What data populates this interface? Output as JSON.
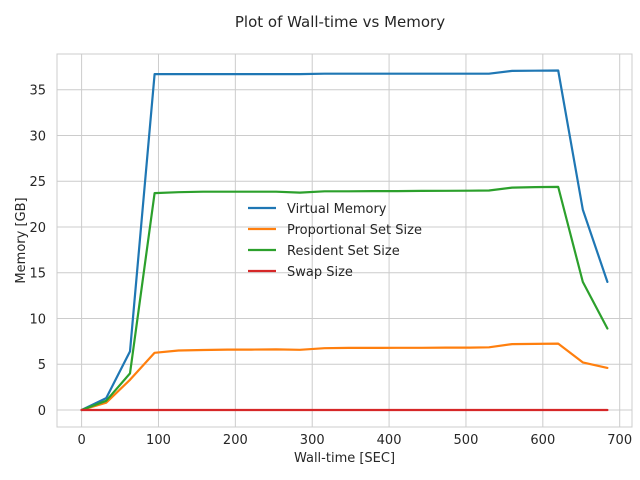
{
  "chart_data": {
    "type": "line",
    "title": "Plot of Wall-time vs Memory",
    "xlabel": "Wall-time [SEC]",
    "ylabel": "Memory [GB]",
    "xlim": [
      -32,
      716
    ],
    "ylim": [
      -1.86,
      38.9
    ],
    "xticks": [
      0,
      100,
      200,
      300,
      400,
      500,
      600,
      700
    ],
    "yticks": [
      0,
      5,
      10,
      15,
      20,
      25,
      30,
      35
    ],
    "grid": true,
    "legend_position": "center",
    "series": [
      {
        "name": "Virtual Memory",
        "color": "#1f77b4",
        "x": [
          0,
          32,
          63,
          95,
          126,
          158,
          190,
          221,
          253,
          284,
          316,
          347,
          379,
          411,
          442,
          474,
          505,
          530,
          560,
          590,
          620,
          652,
          684
        ],
        "y": [
          0,
          1.3,
          6.4,
          36.7,
          36.7,
          36.7,
          36.7,
          36.7,
          36.7,
          36.7,
          36.75,
          36.75,
          36.75,
          36.75,
          36.75,
          36.75,
          36.75,
          36.75,
          37.05,
          37.08,
          37.1,
          21.9,
          14.0
        ]
      },
      {
        "name": "Proportional Set Size",
        "color": "#ff7f0e",
        "x": [
          0,
          32,
          63,
          95,
          126,
          158,
          190,
          221,
          253,
          284,
          316,
          347,
          379,
          411,
          442,
          474,
          505,
          530,
          560,
          590,
          620,
          652,
          684
        ],
        "y": [
          0,
          0.8,
          3.3,
          6.25,
          6.5,
          6.55,
          6.6,
          6.6,
          6.62,
          6.58,
          6.75,
          6.78,
          6.78,
          6.8,
          6.8,
          6.82,
          6.82,
          6.85,
          7.2,
          7.22,
          7.25,
          5.2,
          4.6
        ]
      },
      {
        "name": "Resident Set Size",
        "color": "#2ca02c",
        "x": [
          0,
          32,
          63,
          95,
          126,
          158,
          190,
          221,
          253,
          284,
          316,
          347,
          379,
          411,
          442,
          474,
          505,
          530,
          560,
          590,
          620,
          652,
          684
        ],
        "y": [
          0,
          1.0,
          4.0,
          23.7,
          23.8,
          23.85,
          23.85,
          23.85,
          23.85,
          23.75,
          23.9,
          23.9,
          23.92,
          23.92,
          23.94,
          23.95,
          23.96,
          23.98,
          24.3,
          24.35,
          24.38,
          14.0,
          8.9
        ]
      },
      {
        "name": "Swap Size",
        "color": "#d62728",
        "x": [
          0,
          32,
          63,
          95,
          126,
          158,
          190,
          221,
          253,
          284,
          316,
          347,
          379,
          411,
          442,
          474,
          505,
          530,
          560,
          590,
          620,
          652,
          684
        ],
        "y": [
          0,
          0,
          0,
          0,
          0,
          0,
          0,
          0,
          0,
          0,
          0,
          0,
          0,
          0,
          0,
          0,
          0,
          0,
          0,
          0,
          0,
          0,
          0
        ]
      }
    ]
  }
}
